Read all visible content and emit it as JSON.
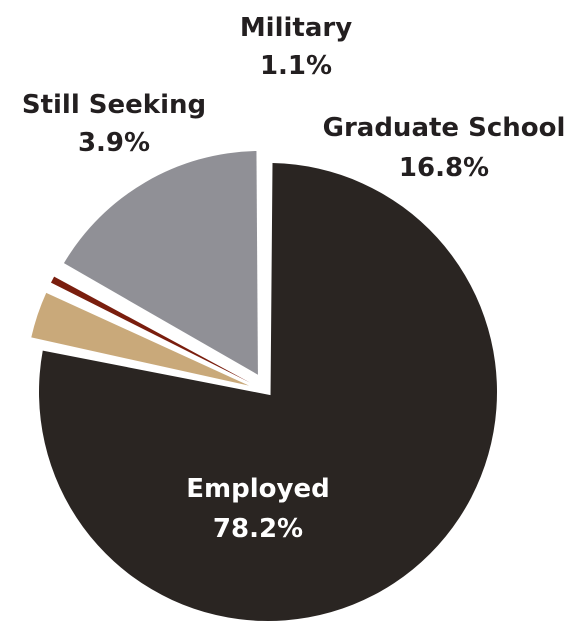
{
  "chart_data": {
    "type": "pie",
    "title": "",
    "slices": [
      {
        "label": "Employed",
        "value": 78.2,
        "value_label": "78.2%",
        "color": "#2a2522",
        "text_color": "#ffffff"
      },
      {
        "label": "Still Seeking",
        "value": 3.9,
        "value_label": "3.9%",
        "color": "#c9a97a",
        "text_color": "#231f20"
      },
      {
        "label": "Military",
        "value": 1.1,
        "value_label": "1.1%",
        "color": "#7a1e0e",
        "text_color": "#231f20"
      },
      {
        "label": "Graduate School",
        "value": 16.8,
        "value_label": "16.8%",
        "color": "#909096",
        "text_color": "#231f20"
      }
    ],
    "exploded": true,
    "legend": "none"
  }
}
